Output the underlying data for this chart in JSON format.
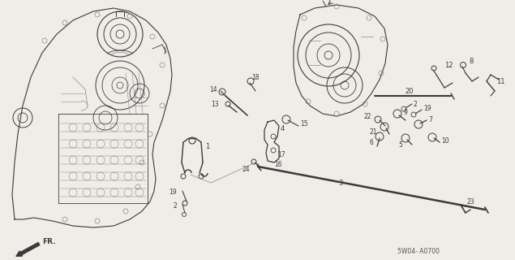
{
  "bg_color": "#f0ede8",
  "diagram_code": "5W04- A0700",
  "fr_label": "FR.",
  "figsize": [
    6.35,
    3.2
  ],
  "dpi": 100,
  "line_color": "#3a3a3a",
  "light_color": "#888888",
  "lighter_color": "#aaaaaa"
}
